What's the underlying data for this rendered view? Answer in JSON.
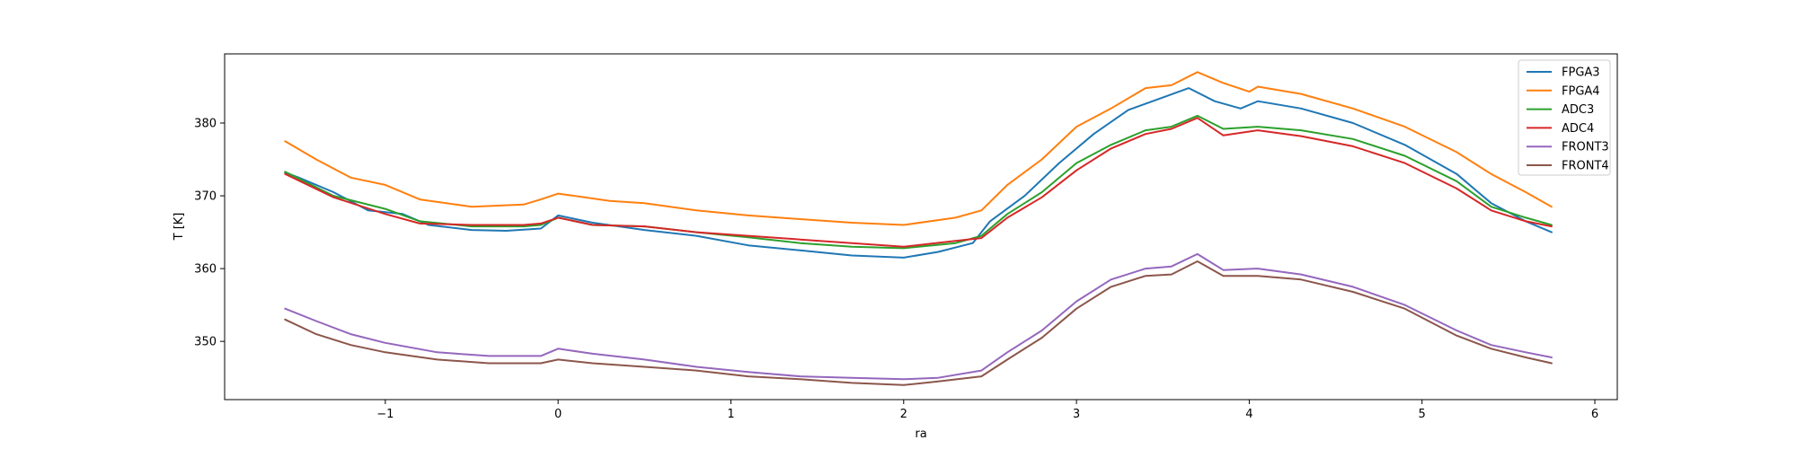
{
  "chart_data": {
    "type": "line",
    "title": "",
    "xlabel": "ra",
    "ylabel": "T [K]",
    "xlim": [
      -1.93,
      6.13
    ],
    "ylim": [
      342,
      389.5
    ],
    "xticks": [
      -1,
      0,
      1,
      2,
      3,
      4,
      5,
      6
    ],
    "yticks": [
      350,
      360,
      370,
      380
    ],
    "xtick_labels": [
      "−1",
      "0",
      "1",
      "2",
      "3",
      "4",
      "5",
      "6"
    ],
    "ytick_labels": [
      "350",
      "360",
      "370",
      "380"
    ],
    "grid": false,
    "legend_position": "top-right",
    "series": [
      {
        "name": "FPGA3",
        "color": "#1f77b4",
        "x": [
          -1.58,
          -1.5,
          -1.3,
          -1.1,
          -0.9,
          -0.75,
          -0.5,
          -0.3,
          -0.1,
          0.0,
          0.2,
          0.5,
          0.8,
          1.1,
          1.4,
          1.7,
          2.0,
          2.2,
          2.4,
          2.5,
          2.7,
          2.9,
          3.1,
          3.3,
          3.5,
          3.65,
          3.8,
          3.95,
          4.05,
          4.3,
          4.6,
          4.9,
          5.2,
          5.4,
          5.6,
          5.75
        ],
        "y": [
          373.2,
          372.5,
          370.5,
          368.0,
          367.5,
          366.0,
          365.3,
          365.2,
          365.5,
          367.3,
          366.3,
          365.3,
          364.5,
          363.2,
          362.5,
          361.8,
          361.5,
          362.3,
          363.5,
          366.5,
          370.0,
          374.5,
          378.5,
          381.8,
          383.5,
          384.8,
          383.0,
          382.0,
          383.0,
          382.0,
          380.0,
          377.0,
          373.0,
          369.0,
          366.5,
          365.0
        ]
      },
      {
        "name": "FPGA4",
        "color": "#ff7f0e",
        "x": [
          -1.58,
          -1.4,
          -1.2,
          -1.0,
          -0.8,
          -0.5,
          -0.2,
          -0.1,
          0.0,
          0.3,
          0.5,
          0.8,
          1.1,
          1.4,
          1.7,
          2.0,
          2.3,
          2.45,
          2.6,
          2.8,
          3.0,
          3.2,
          3.4,
          3.55,
          3.7,
          3.85,
          4.0,
          4.05,
          4.3,
          4.6,
          4.9,
          5.2,
          5.4,
          5.6,
          5.75
        ],
        "y": [
          377.5,
          375.0,
          372.5,
          371.5,
          369.5,
          368.5,
          368.8,
          369.5,
          370.3,
          369.3,
          369.0,
          368.0,
          367.3,
          366.8,
          366.3,
          366.0,
          367.0,
          368.0,
          371.5,
          375.0,
          379.5,
          382.0,
          384.8,
          385.2,
          387.0,
          385.5,
          384.3,
          385.0,
          384.0,
          382.0,
          379.5,
          376.0,
          373.0,
          370.5,
          368.5
        ]
      },
      {
        "name": "ADC3",
        "color": "#2ca02c",
        "x": [
          -1.58,
          -1.3,
          -1.0,
          -0.8,
          -0.5,
          -0.2,
          -0.1,
          0.0,
          0.2,
          0.5,
          0.8,
          1.1,
          1.4,
          1.7,
          2.0,
          2.3,
          2.45,
          2.6,
          2.8,
          3.0,
          3.2,
          3.4,
          3.55,
          3.7,
          3.85,
          4.05,
          4.3,
          4.6,
          4.9,
          5.2,
          5.4,
          5.6,
          5.75
        ],
        "y": [
          373.3,
          370.0,
          368.2,
          366.5,
          365.8,
          365.8,
          366.0,
          367.0,
          366.0,
          365.8,
          365.0,
          364.3,
          363.5,
          363.0,
          362.8,
          363.5,
          364.5,
          367.5,
          370.5,
          374.5,
          377.0,
          379.0,
          379.5,
          381.0,
          379.2,
          379.5,
          379.0,
          377.8,
          375.5,
          372.0,
          368.5,
          367.0,
          366.0
        ]
      },
      {
        "name": "ADC4",
        "color": "#d62728",
        "x": [
          -1.58,
          -1.3,
          -1.0,
          -0.8,
          -0.5,
          -0.2,
          -0.1,
          0.0,
          0.2,
          0.5,
          0.8,
          1.1,
          1.4,
          1.7,
          2.0,
          2.3,
          2.45,
          2.6,
          2.8,
          3.0,
          3.2,
          3.4,
          3.55,
          3.7,
          3.85,
          4.05,
          4.3,
          4.6,
          4.9,
          5.2,
          5.4,
          5.6,
          5.75
        ],
        "y": [
          373.0,
          369.8,
          367.5,
          366.2,
          366.0,
          366.0,
          366.2,
          367.0,
          366.0,
          365.8,
          365.0,
          364.5,
          364.0,
          363.5,
          363.0,
          363.8,
          364.2,
          367.0,
          369.8,
          373.5,
          376.5,
          378.5,
          379.2,
          380.7,
          378.3,
          379.0,
          378.2,
          376.8,
          374.5,
          371.0,
          368.0,
          366.5,
          365.8
        ]
      },
      {
        "name": "FRONT3",
        "color": "#9467bd",
        "x": [
          -1.58,
          -1.4,
          -1.2,
          -1.0,
          -0.7,
          -0.4,
          -0.1,
          0.0,
          0.2,
          0.5,
          0.8,
          1.1,
          1.4,
          1.7,
          2.0,
          2.2,
          2.45,
          2.6,
          2.8,
          3.0,
          3.2,
          3.4,
          3.55,
          3.7,
          3.85,
          4.05,
          4.3,
          4.6,
          4.9,
          5.2,
          5.4,
          5.6,
          5.75
        ],
        "y": [
          354.5,
          352.8,
          351.0,
          349.8,
          348.5,
          348.0,
          348.0,
          349.0,
          348.3,
          347.5,
          346.5,
          345.8,
          345.2,
          345.0,
          344.8,
          345.0,
          346.0,
          348.5,
          351.5,
          355.5,
          358.5,
          360.0,
          360.3,
          362.0,
          359.8,
          360.0,
          359.2,
          357.5,
          355.0,
          351.5,
          349.5,
          348.5,
          347.8
        ]
      },
      {
        "name": "FRONT4",
        "color": "#8c564b",
        "x": [
          -1.58,
          -1.4,
          -1.2,
          -1.0,
          -0.7,
          -0.4,
          -0.1,
          0.0,
          0.2,
          0.5,
          0.8,
          1.1,
          1.4,
          1.7,
          2.0,
          2.2,
          2.45,
          2.6,
          2.8,
          3.0,
          3.2,
          3.4,
          3.55,
          3.7,
          3.85,
          4.05,
          4.3,
          4.6,
          4.9,
          5.2,
          5.4,
          5.6,
          5.75
        ],
        "y": [
          353.0,
          351.0,
          349.5,
          348.5,
          347.5,
          347.0,
          347.0,
          347.5,
          347.0,
          346.5,
          346.0,
          345.2,
          344.8,
          344.3,
          344.0,
          344.5,
          345.2,
          347.5,
          350.5,
          354.5,
          357.5,
          359.0,
          359.2,
          361.0,
          359.0,
          359.0,
          358.5,
          356.8,
          354.5,
          350.8,
          349.0,
          347.8,
          347.0
        ]
      }
    ]
  }
}
